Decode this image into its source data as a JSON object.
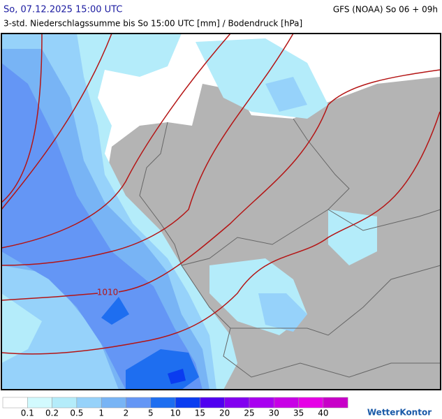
{
  "header": {
    "left": "So, 07.12.2025 15:00 UTC",
    "right": "GFS (NOAA) So 06 + 09h",
    "subtitle": "3-std. Niederschlagssumme bis So 15:00 UTC [mm] / Bodendruck [hPa]"
  },
  "map": {
    "isobar_label": "1010"
  },
  "legend": {
    "colors": [
      "#ffffff",
      "#d2fafe",
      "#b4ecfa",
      "#96d2fa",
      "#78b4f5",
      "#6496f5",
      "#1e6ef0",
      "#0a3cf0",
      "#5000f0",
      "#8200f0",
      "#a800f0",
      "#c800e6",
      "#e600e6",
      "#c800c8"
    ],
    "labels": [
      "0.1",
      "0.2",
      "0.5",
      "1",
      "2",
      "5",
      "10",
      "15",
      "20",
      "25",
      "30",
      "35",
      "40"
    ]
  },
  "brand": "WetterKontor"
}
